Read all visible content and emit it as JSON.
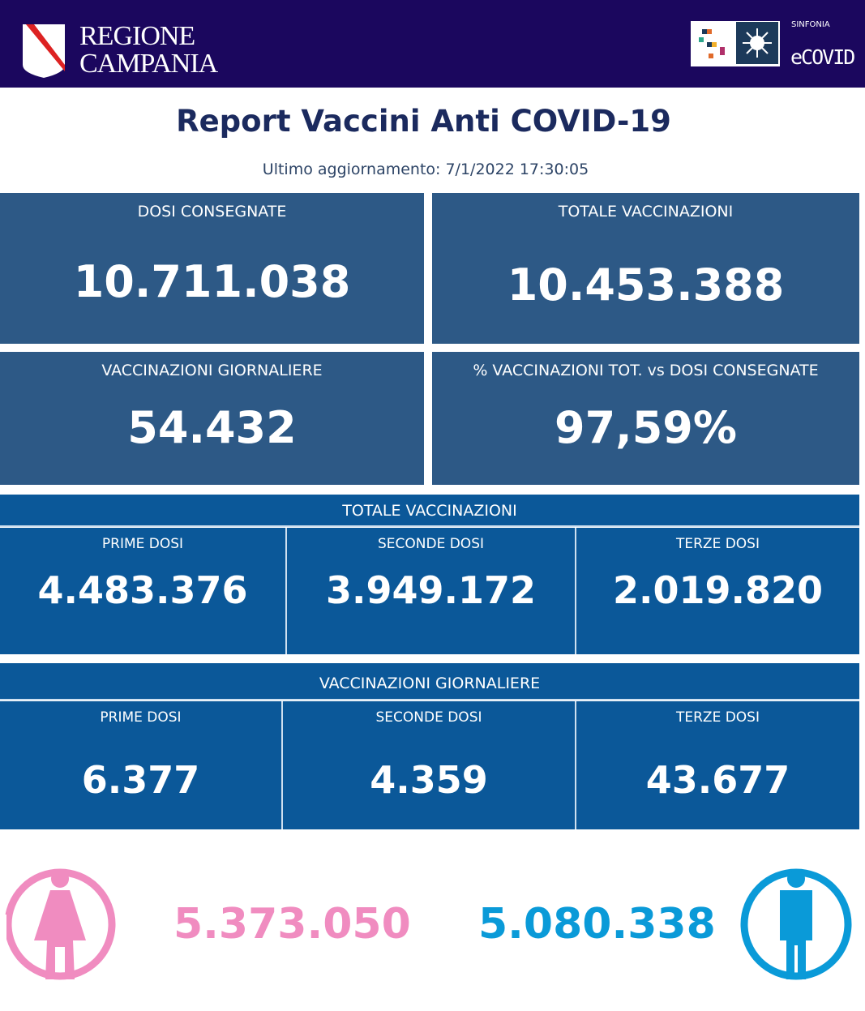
{
  "header": {
    "region_line1": "REGIONE",
    "region_line2": "CAMPANIA",
    "brand_small": "SINFONIA",
    "brand": "eCOVID"
  },
  "title": "Report Vaccini Anti COVID-19",
  "updated": "Ultimo aggiornamento: 7/1/2022  17:30:05",
  "cards": [
    {
      "label": "DOSI  CONSEGNATE",
      "value": "10.711.038"
    },
    {
      "label": "TOTALE VACCINAZIONI",
      "value": "10.453.388"
    },
    {
      "label": "VACCINAZIONI GIORNALIERE",
      "value": "54.432"
    },
    {
      "label": "% VACCINAZIONI TOT. vs DOSI CONSEGNATE",
      "value": "97,59%"
    }
  ],
  "totale": {
    "title": "TOTALE VACCINAZIONI",
    "cells": [
      {
        "label": "PRIME DOSI",
        "value": "4.483.376"
      },
      {
        "label": "SECONDE DOSI",
        "value": "3.949.172"
      },
      {
        "label": "TERZE DOSI",
        "value": "2.019.820"
      }
    ]
  },
  "giornaliere": {
    "title": "VACCINAZIONI GIORNALIERE",
    "cells": [
      {
        "label": "PRIME DOSI",
        "value": "6.377"
      },
      {
        "label": "SECONDE DOSI",
        "value": "4.359"
      },
      {
        "label": "TERZE DOSI",
        "value": "43.677"
      }
    ]
  },
  "gender": {
    "female": "5.373.050",
    "male": "5.080.338",
    "female_color": "#f08cc0",
    "male_color": "#0a9ad8"
  }
}
